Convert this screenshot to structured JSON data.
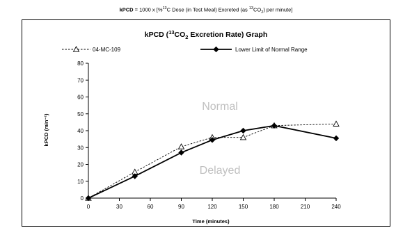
{
  "formula": {
    "bold": "kPCD",
    "eq": " = 1000 x [%",
    "sup1": "13",
    "mid": "C Dose (in Test Meal) Excreted (as ",
    "sup2": "13",
    "co": "CO",
    "sub2": "2",
    "end": ")  per minute]"
  },
  "title": {
    "pre": "kPCD (",
    "sup": "13",
    "co": "CO",
    "sub": "2",
    "post": " Excretion Rate) Graph"
  },
  "region_labels": {
    "upper": "Normal",
    "lower": "Delayed"
  },
  "colors": {
    "region_text": "#bfbfbf",
    "axis": "#000000",
    "series": "#000000"
  },
  "chart_data": {
    "type": "line",
    "xlabel": "Time (minutes)",
    "ylabel": "kPCD (min⁻¹)",
    "x_ticks": [
      0,
      30,
      60,
      90,
      120,
      150,
      180,
      210,
      240
    ],
    "y_ticks": [
      0,
      10,
      20,
      30,
      40,
      50,
      60,
      70,
      80
    ],
    "xlim": [
      0,
      240
    ],
    "ylim": [
      0,
      80
    ],
    "grid": false,
    "legend_position": "top",
    "series": [
      {
        "name": "04-MC-109",
        "style": "dashed",
        "marker": "open-triangle",
        "x": [
          0,
          45,
          90,
          120,
          150,
          180,
          240
        ],
        "y": [
          0,
          15.5,
          30.5,
          36,
          36,
          43,
          44
        ]
      },
      {
        "name": "Lower Limit of Normal Range",
        "style": "solid",
        "marker": "filled-diamond",
        "x": [
          0,
          45,
          90,
          120,
          150,
          180,
          240
        ],
        "y": [
          0,
          13,
          27,
          34.5,
          40,
          43,
          35.5
        ]
      }
    ]
  }
}
